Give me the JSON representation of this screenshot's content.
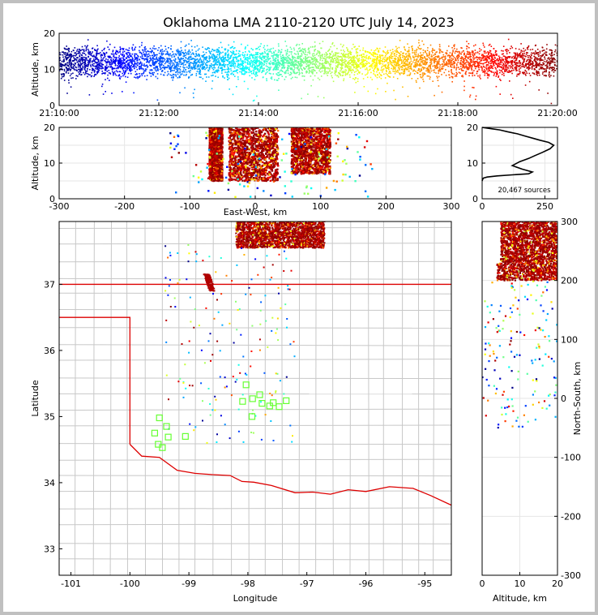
{
  "chart_data": [
    {
      "type": "scatter",
      "panel": "time-altitude",
      "title": "Oklahoma LMA 2110-2120 UTC July 14, 2023",
      "xlabel": "",
      "ylabel": "Altitude, km",
      "xlim": [
        "21:10:00",
        "21:20:00"
      ],
      "ylim": [
        0,
        20
      ],
      "x_ticks": [
        "21:10:00",
        "21:12:00",
        "21:14:00",
        "21:16:00",
        "21:18:00",
        "21:20:00"
      ],
      "y_ticks": [
        0,
        10,
        20
      ],
      "color_encoding": "time (blue to dark red)",
      "points_summary": {
        "altitude_band_km": [
          5,
          20
        ],
        "densest_km": [
          8,
          16
        ]
      }
    },
    {
      "type": "scatter",
      "panel": "east-west-altitude",
      "xlabel": "East-West, km",
      "ylabel": "Altitude, km",
      "xlim": [
        -300,
        300
      ],
      "ylim": [
        0,
        20
      ],
      "x_ticks": [
        -300,
        -200,
        -100,
        0,
        100,
        200,
        300
      ],
      "y_ticks": [
        0,
        10,
        20
      ],
      "clusters_ew_km": [
        [
          -70,
          -50
        ],
        [
          -40,
          35
        ],
        [
          55,
          115
        ]
      ]
    },
    {
      "type": "line",
      "panel": "altitude-histogram",
      "xlabel": "",
      "ylabel": "",
      "xlim": [
        0,
        300
      ],
      "ylim": [
        0,
        20
      ],
      "x_ticks": [
        0,
        250
      ],
      "y_ticks": [
        0,
        10,
        20
      ],
      "annotation": "20,467 sources",
      "x": [
        0,
        2,
        5,
        20,
        60,
        120,
        185,
        200,
        160,
        120,
        150,
        185,
        210,
        240,
        270,
        285,
        265,
        230,
        200,
        170,
        140,
        100,
        70,
        40,
        10,
        0
      ],
      "y": [
        5,
        5.4,
        5.8,
        6.1,
        6.4,
        6.7,
        7.0,
        7.5,
        8.3,
        9.3,
        10.4,
        11.3,
        12.1,
        13.0,
        14.0,
        15.0,
        15.8,
        16.4,
        17.0,
        17.6,
        18.2,
        18.8,
        19.3,
        19.6,
        19.9,
        20
      ]
    },
    {
      "type": "scatter",
      "panel": "plan-view-map",
      "xlabel": "Longitude",
      "ylabel": "Latitude",
      "xlim": [
        -101.2,
        -94.55
      ],
      "ylim": [
        32.6,
        37.95
      ],
      "x_ticks": [
        -101,
        -100,
        -99,
        -98,
        -97,
        -96,
        -95
      ],
      "y_ticks": [
        33,
        34,
        35,
        36,
        37
      ],
      "stations": [
        [
          -99.5,
          34.98
        ],
        [
          -99.38,
          34.85
        ],
        [
          -99.58,
          34.75
        ],
        [
          -99.35,
          34.69
        ],
        [
          -99.52,
          34.58
        ],
        [
          -99.45,
          34.53
        ],
        [
          -99.06,
          34.7
        ],
        [
          -98.03,
          35.48
        ],
        [
          -97.92,
          35.27
        ],
        [
          -98.09,
          35.23
        ],
        [
          -97.8,
          35.33
        ],
        [
          -97.76,
          35.2
        ],
        [
          -97.63,
          35.16
        ],
        [
          -97.57,
          35.21
        ],
        [
          -97.47,
          35.15
        ],
        [
          -97.35,
          35.24
        ],
        [
          -97.93,
          35.0
        ]
      ]
    },
    {
      "type": "scatter",
      "panel": "altitude-north-south",
      "xlabel": "Altitude, km",
      "ylabel": "North-South, km",
      "xlim": [
        0,
        20
      ],
      "ylim": [
        -300,
        300
      ],
      "x_ticks": [
        0,
        10,
        20
      ],
      "y_ticks": [
        -300,
        -200,
        -100,
        0,
        100,
        200,
        300
      ]
    }
  ],
  "colors": {
    "boundary_red": "#dd0000",
    "counties": "#c8c8c8",
    "station": "#66ff33"
  }
}
